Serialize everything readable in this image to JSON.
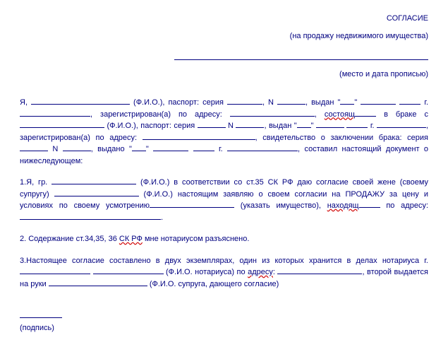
{
  "header": {
    "title": "СОГЛАСИЕ",
    "subtitle": "(на продажу недвижимого имущества)",
    "place_date_label": "(место и дата прописью)"
  },
  "body": {
    "ya": "Я,",
    "fio": "(Ф.И.О.),",
    "passport": "паспорт:",
    "seria": "серия",
    "num": "N",
    "comma": ",",
    "vydan": "выдан",
    "qopen": "\"",
    "qclose": "\"",
    "g": "г.",
    "reg_a": "зарегистрирован(а)",
    "po": "по",
    "adresu": "адресу:",
    "sostoyash": "состоящ",
    "v_brake": "в браке",
    "s": "с",
    "svid": "свидетельство о заключении брака: серия",
    "vydano": "выдано",
    "sostavil": "составил настоящий документ о нижеследующем:",
    "p1_a": "1.Я, гр.",
    "p1_b": "(Ф.И.О.) в соответствии со ст.35 СК РФ даю согласие своей жене",
    "p1_c": "(своему супругу)",
    "p1_d": "(Ф.И.О.) настоящим заявляю о своем согласии на",
    "p1_e": "ПРОДАЖУ за цену и условиях по своему усмотрению",
    "p1_f": "(указать имущество),",
    "nahodyash": "находящ",
    "po_adresu": "по адресу:",
    "dot": ".",
    "p2_a": "2. Содержание ст.34,35, 36",
    "p2_sk": "СК РФ",
    "p2_b": "мне нотариусом разъяснено.",
    "p3_a": "3.Настоящее согласие составлено в двух экземплярах, один из которых хранится в делах нотариуса",
    "p3_g": "г.",
    "p3_fio_not": "(Ф.И.О. нотариуса) по",
    "p3_adresu": "адресу",
    "p3_colon": ":",
    "p3_b": "второй выдается на руки",
    "p3_fio_sup": "(Ф.И.О. супруга, дающего согласие)"
  },
  "footer": {
    "signature_label": "(подпись)"
  }
}
